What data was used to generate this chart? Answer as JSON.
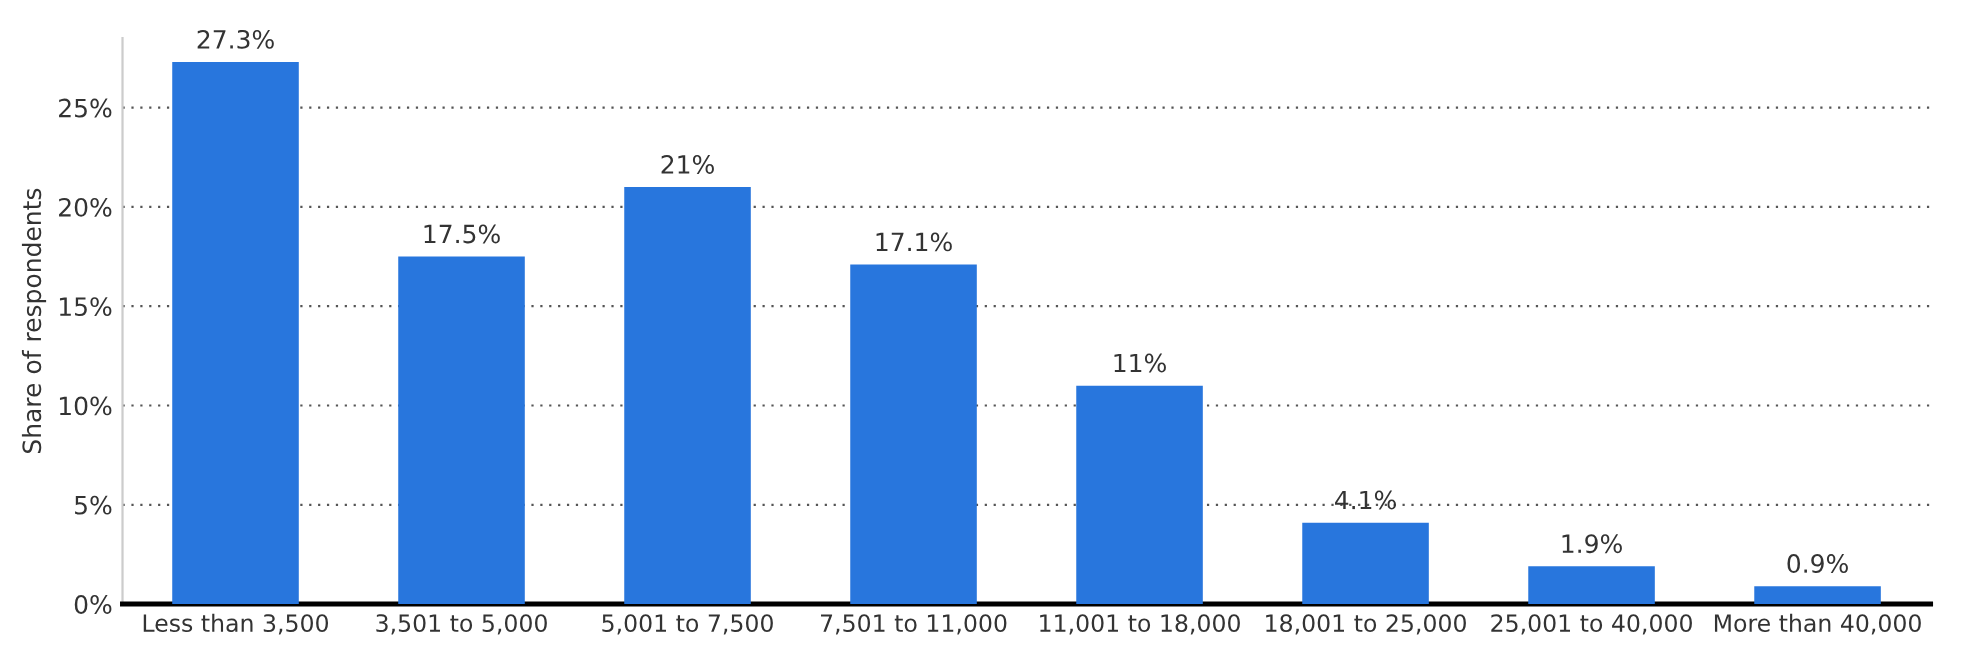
{
  "chart_data": {
    "type": "bar",
    "ylabel": "Share of respondents",
    "categories": [
      "Less than 3,500",
      "3,501 to 5,000",
      "5,001 to 7,500",
      "7,501 to 11,000",
      "11,001 to 18,000",
      "18,001 to 25,000",
      "25,001 to 40,000",
      "More than 40,000"
    ],
    "values": [
      27.3,
      17.5,
      21,
      17.1,
      11,
      4.1,
      1.9,
      0.9
    ],
    "value_labels": [
      "27.3%",
      "17.5%",
      "21%",
      "17.1%",
      "11%",
      "4.1%",
      "1.9%",
      "0.9%"
    ],
    "color": "#2876dd",
    "ylim": [
      0,
      28.5
    ],
    "yticks": [
      {
        "value": 0,
        "label": "0%"
      },
      {
        "value": 5,
        "label": "5%"
      },
      {
        "value": 10,
        "label": "10%"
      },
      {
        "value": 15,
        "label": "15%"
      },
      {
        "value": 20,
        "label": "20%"
      },
      {
        "value": 25,
        "label": "25%"
      }
    ],
    "grid": "y"
  }
}
